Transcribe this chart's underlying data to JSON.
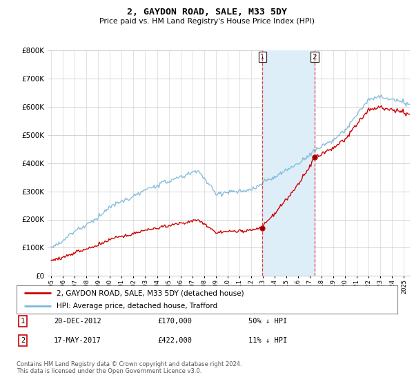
{
  "title": "2, GAYDON ROAD, SALE, M33 5DY",
  "subtitle": "Price paid vs. HM Land Registry's House Price Index (HPI)",
  "ylim": [
    0,
    800000
  ],
  "yticks": [
    0,
    100000,
    200000,
    300000,
    400000,
    500000,
    600000,
    700000,
    800000
  ],
  "hpi_color": "#7ab8d9",
  "price_color": "#cc0000",
  "transaction1_date": "20-DEC-2012",
  "transaction1_price": 170000,
  "transaction1_label": "50% ↓ HPI",
  "transaction1_x": 2012.97,
  "transaction2_date": "17-MAY-2017",
  "transaction2_price": 422000,
  "transaction2_label": "11% ↓ HPI",
  "transaction2_x": 2017.38,
  "legend_label1": "2, GAYDON ROAD, SALE, M33 5DY (detached house)",
  "legend_label2": "HPI: Average price, detached house, Trafford",
  "footer1": "Contains HM Land Registry data © Crown copyright and database right 2024.",
  "footer2": "This data is licensed under the Open Government Licence v3.0.",
  "background_color": "#ffffff",
  "grid_color": "#cccccc",
  "span_color": "#ddeef8"
}
